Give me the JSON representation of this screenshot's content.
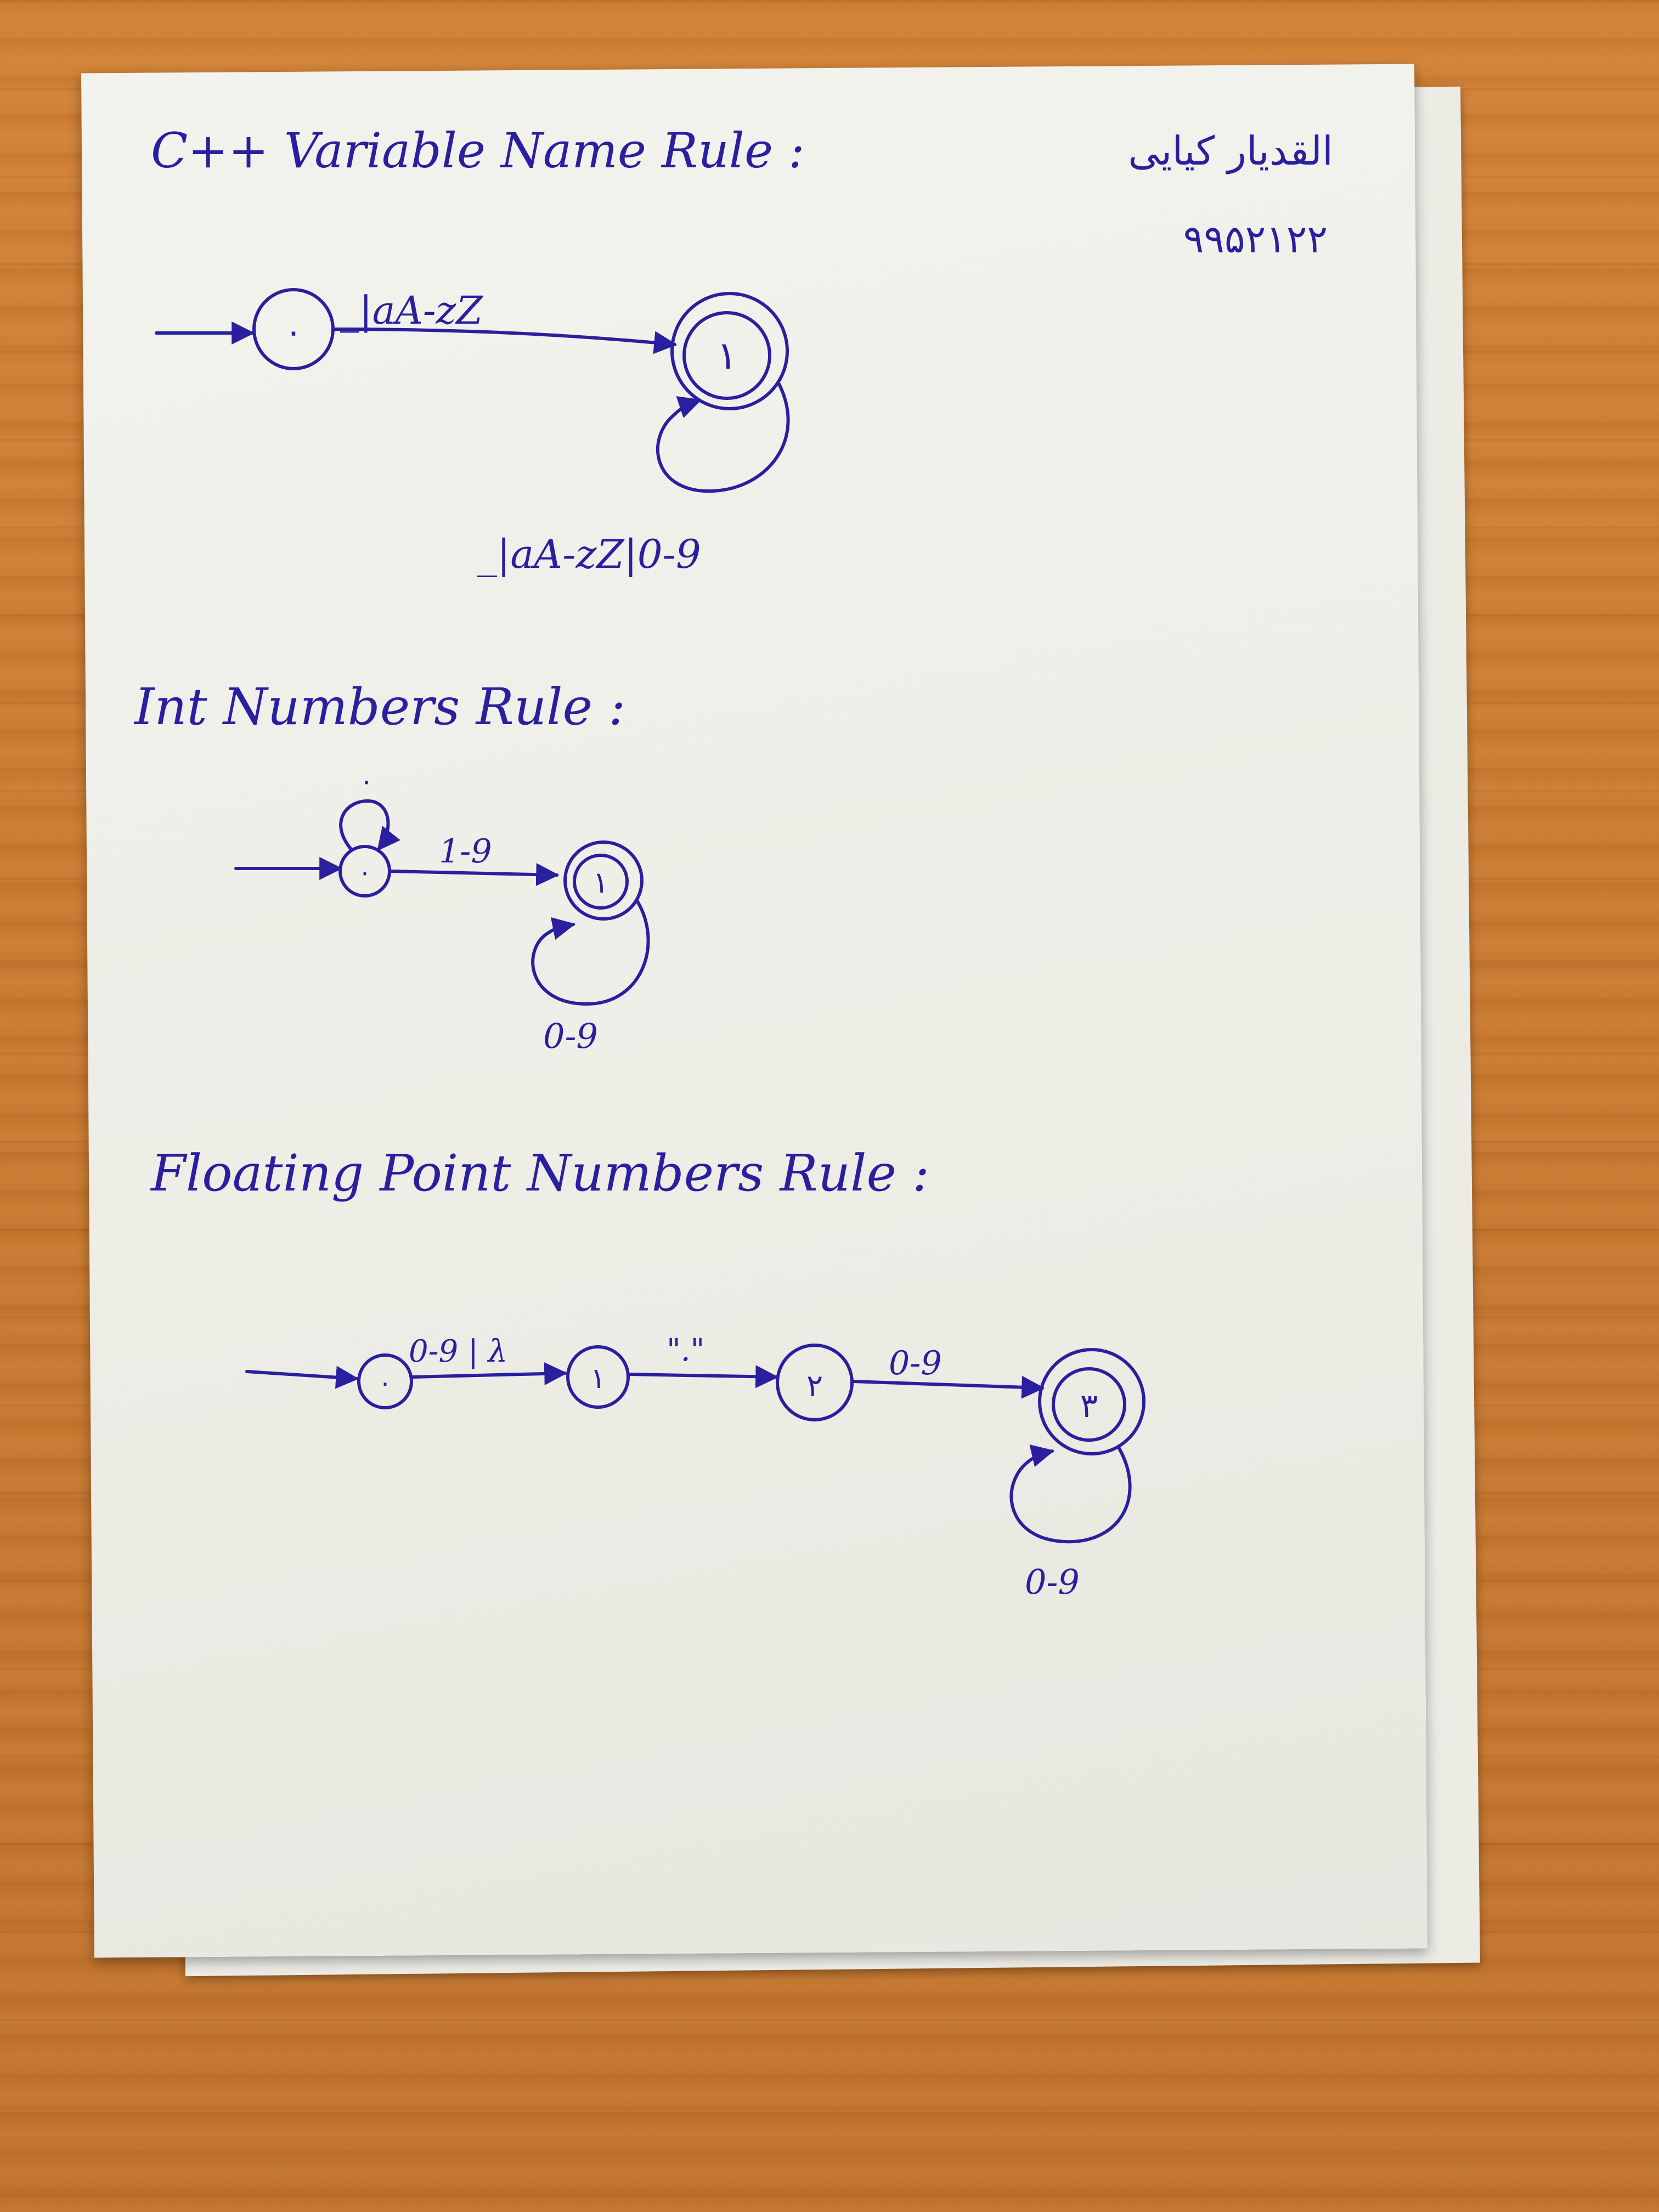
{
  "header": {
    "author_name": "القدیار کیایی",
    "student_id": "۹۹۵۲۱۲۲"
  },
  "sections": [
    {
      "title": "C++ Variable Name Rule :",
      "states": [
        "۰",
        "۱"
      ],
      "transitions": [
        {
          "label": "_|aA-zZ"
        },
        {
          "label": "_|aA-zZ|0-9"
        }
      ]
    },
    {
      "title": "Int Numbers Rule :",
      "states": [
        "۰",
        "۱"
      ],
      "transitions": [
        {
          "label": "۰"
        },
        {
          "label": "1-9"
        },
        {
          "label": "0-9"
        }
      ]
    },
    {
      "title": "Floating Point Numbers Rule :",
      "states": [
        "۰",
        "۱",
        "۲",
        "۳"
      ],
      "transitions": [
        {
          "label": "0-9 | λ"
        },
        {
          "label": "\".\""
        },
        {
          "label": "0-9"
        },
        {
          "label": "0-9"
        }
      ]
    }
  ],
  "colors": {
    "ink": "#2a1f9e",
    "paper": "#f1f1ec",
    "desk": "#c97a31"
  }
}
